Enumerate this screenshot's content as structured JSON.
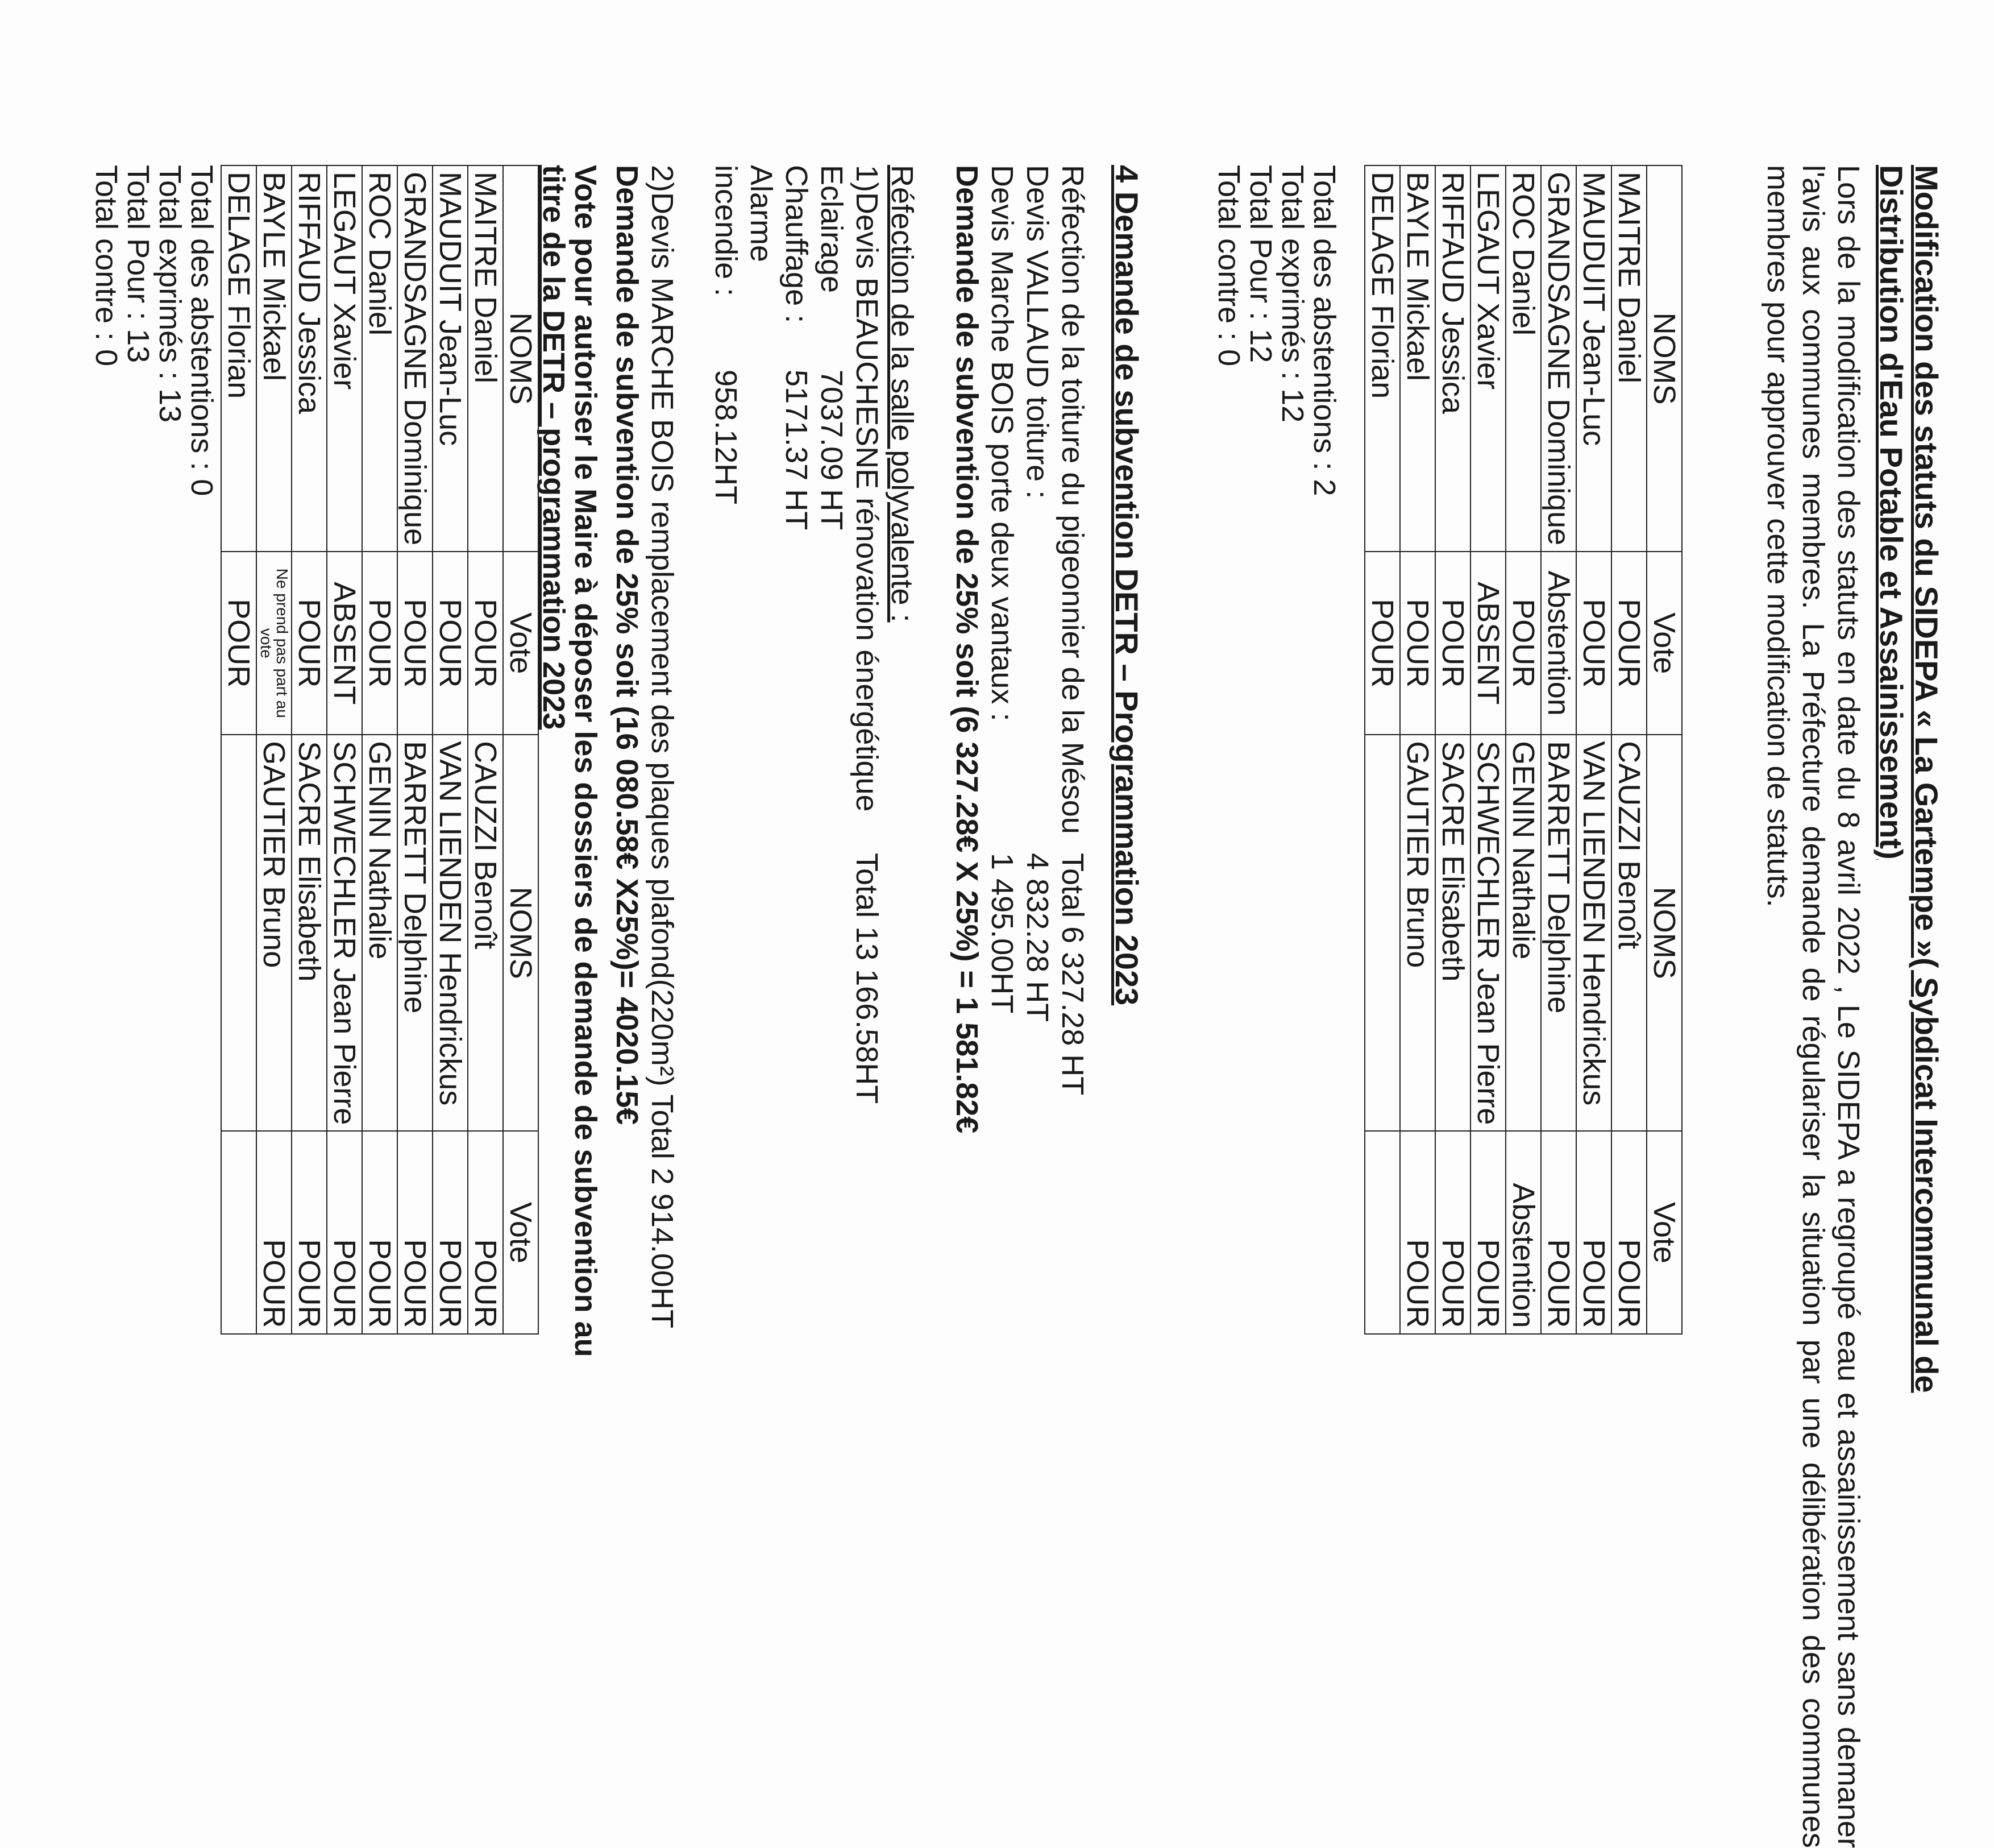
{
  "section_sidepa": {
    "title_line1": "Modification des statuts du SIDEPA « La Gartempe »( Sybdicat Intercommunal de",
    "title_line2": "Distribution d'Eau Potable et Assainissement)",
    "paragraph": "Lors de la modification des statuts en date du 8 avril 2022 , Le SIDEPA a regroupé eau et assainissement sans demaner l'avis aux communes membres. La Préfecture demande de régulariser la situation par une délibération des communes membres pour approuver cette modification de statuts.",
    "table": {
      "headers": [
        "NOMS",
        "Vote",
        "NOMS",
        "Vote"
      ],
      "rows": [
        [
          "MAITRE Daniel",
          "POUR",
          "CAUZZI Benoît",
          "POUR"
        ],
        [
          "MAUDUIT Jean-Luc",
          "POUR",
          "VAN LIENDEN Hendrickus",
          "POUR"
        ],
        [
          "GRANDSAGNE Dominique",
          "Abstention",
          "BARRETT Delphine",
          "POUR"
        ],
        [
          "ROC Daniel",
          "POUR",
          "GENIN Nathalie",
          "Abstention"
        ],
        [
          "LEGAUT Xavier",
          "ABSENT",
          "SCHWECHLER Jean Pierre",
          "POUR"
        ],
        [
          "RIFFAUD Jessica",
          "POUR",
          "SACRE Elisabeth",
          "POUR"
        ],
        [
          "BAYLE Mickael",
          "POUR",
          "GAUTIER Bruno",
          "POUR"
        ],
        [
          "DELAGE Florian",
          "POUR",
          "",
          ""
        ]
      ]
    },
    "totals": [
      "Total des abstentions : 2",
      "Total exprimés : 12",
      "Total Pour : 12",
      "Total contre : 0"
    ]
  },
  "section_detr": {
    "heading": "4  Demande de subvention DETR – Programmation 2023",
    "pigeonnier": {
      "label": "Réfection de la toiture du pigeonnier de la Mésou",
      "total": "Total 6 327.28 HT",
      "lines": [
        {
          "label": "Devis VALLAUD toiture :",
          "value": "4 832.28 HT"
        },
        {
          "label": "Devis Marche BOIS porte deux vantaux :",
          "value": "1 495.00HT"
        }
      ],
      "demande": "Demande de subvention de  25% soit (6 327.28€ X 25%) = 1 581.82€"
    },
    "salle": {
      "label": "Réfection de la salle polyvalente :",
      "devis1": "1)Devis BEAUCHESNE rénovation énergétique",
      "devis1_total": "Total 13 166.58HT",
      "items": [
        {
          "label": "Eclairage",
          "value": "7037.09 HT"
        },
        {
          "label": "Chauffage :",
          "value": "5171.37 HT"
        },
        {
          "label": "Alarme incendie :",
          "value": "958.12HT"
        }
      ],
      "devis2": "2)Devis MARCHE BOIS remplacement des plaques plafond(220m²) Total 2 914.00HT",
      "demande": "Demande de subvention de 25% soit (16 080.58€ X25%)= 4020.15€"
    },
    "vote_title_line1": "Vote  pour autoriser le Maire à déposer les dossiers de demande de subvention au",
    "vote_title_line2": "titre de la DETR – programmation 2023",
    "table": {
      "headers": [
        "NOMS",
        "Vote",
        "NOMS",
        "Vote"
      ],
      "rows": [
        [
          "MAITRE Daniel",
          "POUR",
          "CAUZZI Benoît",
          "POUR"
        ],
        [
          "MAUDUIT Jean-Luc",
          "POUR",
          "VAN LIENDEN Hendrickus",
          "POUR"
        ],
        [
          "GRANDSAGNE Dominique",
          "POUR",
          "BARRETT Delphine",
          "POUR"
        ],
        [
          "ROC Daniel",
          "POUR",
          "GENIN Nathalie",
          "POUR"
        ],
        [
          "LEGAUT Xavier",
          "ABSENT",
          "SCHWECHLER Jean Pierre",
          "POUR"
        ],
        [
          "RIFFAUD Jessica",
          "POUR",
          "SACRE Elisabeth",
          "POUR"
        ],
        [
          "BAYLE Mickael",
          "Ne prend pas part au vote",
          "GAUTIER Bruno",
          "POUR"
        ],
        [
          "DELAGE Florian",
          "POUR",
          "",
          ""
        ]
      ]
    },
    "totals": [
      "Total des abstentions : 0",
      "Total exprimés : 13",
      "Total Pour : 13",
      "Total contre : 0"
    ]
  }
}
